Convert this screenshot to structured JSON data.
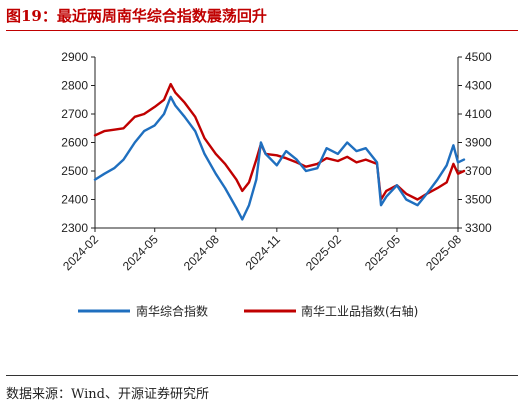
{
  "title": "图19：最近两周南华综合指数震荡回升",
  "source": "数据来源：Wind、开源证券研究所",
  "chart_data": {
    "type": "line",
    "x_ticks": [
      "2024-02",
      "2024-05",
      "2024-08",
      "2024-11",
      "2025-02",
      "2025-05",
      "2025-08"
    ],
    "y_left": {
      "ticks": [
        "2900",
        "2800",
        "2700",
        "2600",
        "2500",
        "2400",
        "2300"
      ],
      "lim": [
        2300,
        2900
      ]
    },
    "y_right": {
      "ticks": [
        "4500",
        "4300",
        "4100",
        "3900",
        "3700",
        "3500",
        "3300"
      ],
      "lim": [
        3300,
        4500
      ]
    },
    "grid": false,
    "legend_position": "bottom",
    "series": [
      {
        "name": "南华综合指数",
        "axis": "left",
        "color": "#1f6fbf",
        "x": [
          "2024-02-01",
          "2024-02-15",
          "2024-03-01",
          "2024-03-15",
          "2024-04-01",
          "2024-04-15",
          "2024-05-01",
          "2024-05-15",
          "2024-05-25",
          "2024-06-01",
          "2024-06-15",
          "2024-07-01",
          "2024-07-15",
          "2024-08-01",
          "2024-08-15",
          "2024-09-01",
          "2024-09-10",
          "2024-09-20",
          "2024-10-01",
          "2024-10-08",
          "2024-10-15",
          "2024-11-01",
          "2024-11-15",
          "2024-12-01",
          "2024-12-15",
          "2025-01-01",
          "2025-01-15",
          "2025-02-01",
          "2025-02-15",
          "2025-03-01",
          "2025-03-15",
          "2025-04-01",
          "2025-04-07",
          "2025-04-15",
          "2025-05-01",
          "2025-05-15",
          "2025-06-01",
          "2025-06-15",
          "2025-07-01",
          "2025-07-15",
          "2025-07-25",
          "2025-08-01",
          "2025-08-10"
        ],
        "values": [
          2470,
          2490,
          2510,
          2540,
          2600,
          2640,
          2660,
          2700,
          2760,
          2730,
          2690,
          2640,
          2560,
          2490,
          2440,
          2370,
          2330,
          2380,
          2470,
          2600,
          2560,
          2520,
          2570,
          2540,
          2500,
          2510,
          2580,
          2560,
          2600,
          2570,
          2580,
          2530,
          2380,
          2410,
          2450,
          2400,
          2380,
          2420,
          2470,
          2520,
          2590,
          2530,
          2540
        ]
      },
      {
        "name": "南华工业品指数(右轴)",
        "axis": "right",
        "color": "#c00000",
        "x": [
          "2024-02-01",
          "2024-02-15",
          "2024-03-01",
          "2024-03-15",
          "2024-04-01",
          "2024-04-15",
          "2024-05-01",
          "2024-05-15",
          "2024-05-25",
          "2024-06-01",
          "2024-06-15",
          "2024-07-01",
          "2024-07-15",
          "2024-08-01",
          "2024-08-15",
          "2024-09-01",
          "2024-09-10",
          "2024-09-20",
          "2024-10-01",
          "2024-10-08",
          "2024-10-15",
          "2024-11-01",
          "2024-11-15",
          "2024-12-01",
          "2024-12-15",
          "2025-01-01",
          "2025-01-15",
          "2025-02-01",
          "2025-02-15",
          "2025-03-01",
          "2025-03-15",
          "2025-04-01",
          "2025-04-07",
          "2025-04-15",
          "2025-05-01",
          "2025-05-15",
          "2025-06-01",
          "2025-06-15",
          "2025-07-01",
          "2025-07-15",
          "2025-07-25",
          "2025-08-01",
          "2025-08-10"
        ],
        "values": [
          3950,
          3980,
          3990,
          4000,
          4080,
          4100,
          4150,
          4200,
          4310,
          4250,
          4180,
          4080,
          3930,
          3820,
          3750,
          3640,
          3560,
          3620,
          3780,
          3890,
          3820,
          3810,
          3790,
          3760,
          3730,
          3750,
          3790,
          3770,
          3800,
          3760,
          3780,
          3750,
          3500,
          3560,
          3600,
          3540,
          3500,
          3540,
          3580,
          3620,
          3750,
          3680,
          3700
        ]
      }
    ]
  }
}
